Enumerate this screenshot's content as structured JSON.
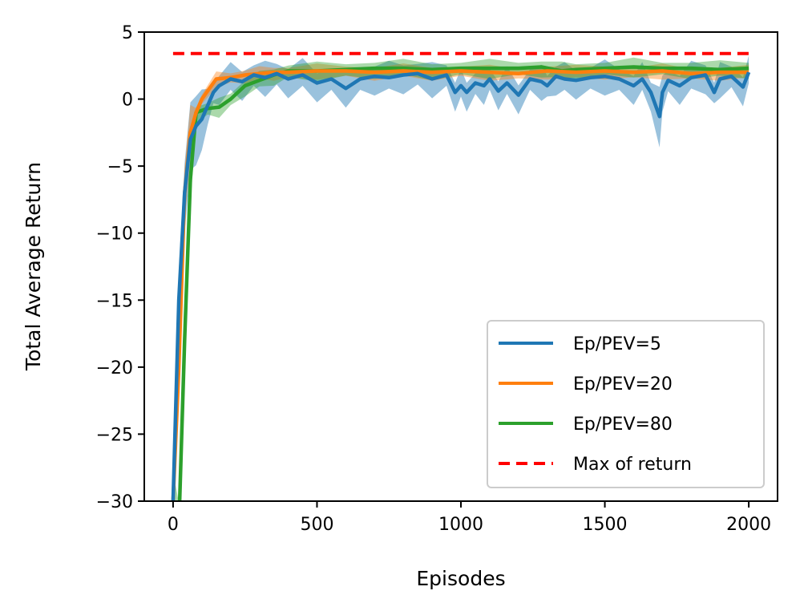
{
  "chart_data": {
    "type": "line",
    "xlabel": "Episodes",
    "ylabel": "Total Average Return",
    "xlim": [
      -100,
      2100
    ],
    "ylim": [
      -30,
      5
    ],
    "xticks": [
      0,
      500,
      1000,
      1500,
      2000
    ],
    "xtick_labels": [
      "0",
      "500",
      "1000",
      "1500",
      "2000"
    ],
    "yticks": [
      5,
      0,
      -5,
      -10,
      -15,
      -20,
      -25,
      -30
    ],
    "ytick_labels": [
      "5",
      "0",
      "−5",
      "−10",
      "−15",
      "−20",
      "−25",
      "−30"
    ],
    "grid": false,
    "legend_position": "lower-right",
    "series": [
      {
        "name": "Ep/PEV=5",
        "color": "#1f77b4",
        "x": [
          0,
          20,
          40,
          60,
          80,
          100,
          120,
          140,
          160,
          200,
          240,
          280,
          320,
          360,
          400,
          450,
          500,
          550,
          600,
          650,
          700,
          750,
          800,
          850,
          900,
          950,
          980,
          1000,
          1020,
          1050,
          1080,
          1100,
          1130,
          1160,
          1200,
          1240,
          1280,
          1300,
          1330,
          1360,
          1400,
          1450,
          1500,
          1550,
          1600,
          1630,
          1660,
          1690,
          1700,
          1720,
          1760,
          1800,
          1850,
          1880,
          1900,
          1940,
          1980,
          2000
        ],
        "y": [
          -30,
          -15,
          -7,
          -3,
          -2,
          -1.5,
          -0.5,
          0.5,
          1.0,
          1.5,
          1.3,
          1.8,
          1.6,
          1.9,
          1.5,
          1.8,
          1.2,
          1.5,
          0.8,
          1.5,
          1.7,
          1.6,
          1.8,
          1.9,
          1.5,
          1.8,
          0.5,
          1.0,
          0.5,
          1.2,
          1.0,
          1.5,
          0.6,
          1.2,
          0.3,
          1.5,
          1.3,
          1.0,
          1.7,
          1.5,
          1.4,
          1.6,
          1.7,
          1.5,
          1.0,
          1.5,
          0.5,
          -1.3,
          0.5,
          1.4,
          1.0,
          1.6,
          1.8,
          0.5,
          1.5,
          1.7,
          0.9,
          2.0
        ]
      },
      {
        "name": "Ep/PEV=20",
        "color": "#ff7f0e",
        "x": [
          0,
          20,
          40,
          60,
          80,
          100,
          150,
          200,
          250,
          300,
          350,
          400,
          500,
          600,
          700,
          800,
          900,
          1000,
          1100,
          1200,
          1300,
          1400,
          1500,
          1600,
          1700,
          1800,
          1900,
          2000
        ],
        "y": [
          -30,
          -20,
          -7,
          -2.5,
          -1.0,
          0.0,
          1.5,
          1.6,
          1.8,
          1.9,
          2.0,
          2.0,
          2.1,
          2.1,
          2.0,
          2.1,
          2.0,
          2.1,
          2.0,
          1.9,
          2.1,
          2.0,
          2.1,
          2.0,
          2.1,
          1.9,
          2.0,
          2.0
        ]
      },
      {
        "name": "Ep/PEV=80",
        "color": "#2ca02c",
        "x": [
          0,
          20,
          40,
          60,
          80,
          120,
          160,
          200,
          250,
          300,
          350,
          400,
          500,
          600,
          700,
          800,
          900,
          1000,
          1100,
          1200,
          1280,
          1350,
          1400,
          1500,
          1600,
          1700,
          1800,
          1900,
          2000
        ],
        "y": [
          -30,
          -32,
          -18,
          -6,
          -1.0,
          -0.7,
          -0.6,
          0.0,
          1.0,
          1.4,
          1.8,
          2.1,
          2.1,
          2.2,
          2.3,
          2.3,
          2.2,
          2.3,
          2.3,
          2.3,
          2.4,
          2.1,
          2.2,
          2.3,
          2.4,
          2.3,
          2.3,
          2.2,
          2.3
        ]
      },
      {
        "name": "Max of return",
        "color": "#ff0000",
        "style": "dashed",
        "x": [
          0,
          2000
        ],
        "y": [
          3.4,
          3.4
        ]
      }
    ]
  }
}
